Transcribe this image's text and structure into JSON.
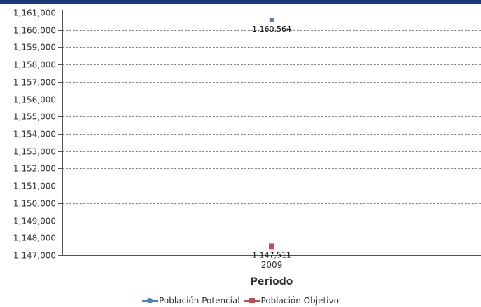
{
  "chart_data": {
    "type": "scatter",
    "categories": [
      "2009"
    ],
    "series": [
      {
        "name": "Población Potencial",
        "values": [
          1160564
        ],
        "color": "#4f81bd",
        "marker": "circle",
        "label": "1,160,564"
      },
      {
        "name": "Población Objetivo",
        "values": [
          1147511
        ],
        "color": "#c0504d",
        "marker": "square",
        "label": "1,147,511"
      }
    ],
    "xlabel": "Periodo",
    "ylabel": "",
    "ylim": [
      1147000,
      1161000
    ],
    "yticks": [
      "1,147,000",
      "1,148,000",
      "1,149,000",
      "1,150,000",
      "1,151,000",
      "1,152,000",
      "1,153,000",
      "1,154,000",
      "1,155,000",
      "1,156,000",
      "1,157,000",
      "1,158,000",
      "1,159,000",
      "1,160,000",
      "1,161,000"
    ],
    "grid": true,
    "legend_position": "bottom"
  }
}
